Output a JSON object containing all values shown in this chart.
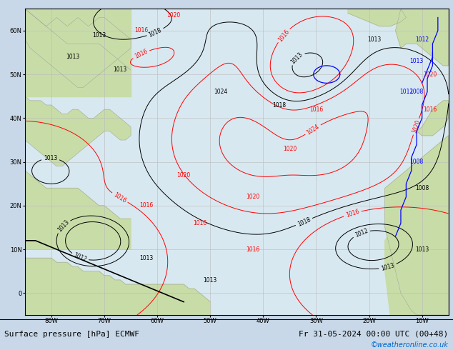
{
  "title_left": "Surface pressure [hPa] ECMWF",
  "title_right": "Fr 31-05-2024 00:00 UTC (00+48)",
  "watermark": "©weatheronline.co.uk",
  "bg_ocean": "#d8e8f0",
  "land_color": "#c8dca8",
  "grid_color": "#bbbbbb",
  "fig_width": 6.34,
  "fig_height": 4.9,
  "dpi": 100,
  "xlim": [
    -85,
    -5
  ],
  "ylim": [
    -5,
    65
  ],
  "xticks": [
    -80,
    -70,
    -60,
    -50,
    -40,
    -30,
    -20,
    -10
  ],
  "yticks": [
    0,
    10,
    20,
    30,
    40,
    50,
    60
  ],
  "xlabel_labels": [
    "80W",
    "70W",
    "60W",
    "50W",
    "40W",
    "30W",
    "20W",
    "10W"
  ],
  "ylabel_labels": [
    "0",
    "10N",
    "20N",
    "30N",
    "40N",
    "50N",
    "60N"
  ],
  "title_fontsize": 8,
  "tick_fontsize": 6,
  "watermark_color": "#0066cc",
  "watermark_fontsize": 7
}
